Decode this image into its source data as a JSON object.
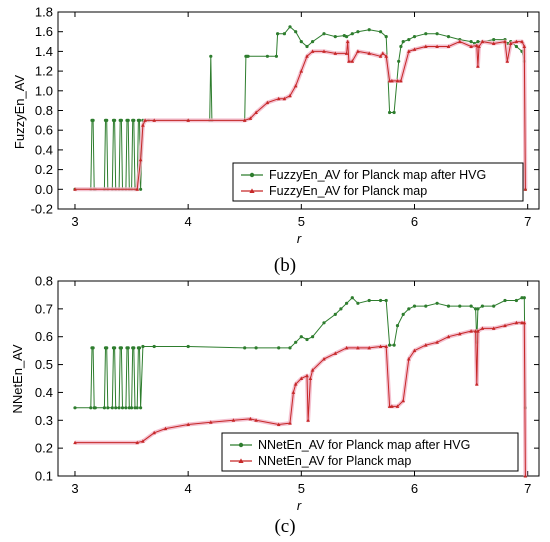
{
  "chart_data": [
    {
      "type": "line",
      "panel_label": "(b)",
      "xlabel": "r",
      "ylabel": "FuzzyEn_AV",
      "xlim": [
        2.85,
        7.1
      ],
      "ylim": [
        -0.2,
        1.8
      ],
      "xticks": [
        "3",
        "4",
        "5",
        "6",
        "7"
      ],
      "yticks": [
        "-0.2",
        "0.0",
        "0.2",
        "0.4",
        "0.6",
        "0.8",
        "1.0",
        "1.2",
        "1.4",
        "1.6",
        "1.8"
      ],
      "legend_position": "bottom-right",
      "grid": false,
      "series": [
        {
          "name": "FuzzyEn_AV for Planck map after HVG",
          "color": "#2e7d2e",
          "x": [
            3.0,
            3.14,
            3.15,
            3.16,
            3.17,
            3.18,
            3.26,
            3.27,
            3.28,
            3.29,
            3.33,
            3.34,
            3.35,
            3.36,
            3.39,
            3.4,
            3.41,
            3.42,
            3.45,
            3.46,
            3.47,
            3.48,
            3.5,
            3.51,
            3.52,
            3.53,
            3.55,
            3.56,
            3.57,
            3.58,
            3.6,
            3.65,
            4.0,
            4.19,
            4.2,
            4.21,
            4.5,
            4.51,
            4.52,
            4.53,
            4.7,
            4.78,
            4.79,
            4.85,
            4.9,
            4.95,
            5.0,
            5.05,
            5.1,
            5.2,
            5.3,
            5.38,
            5.4,
            5.45,
            5.5,
            5.6,
            5.7,
            5.75,
            5.78,
            5.82,
            5.86,
            5.88,
            5.9,
            5.95,
            6.0,
            6.1,
            6.2,
            6.3,
            6.4,
            6.5,
            6.53,
            6.56,
            6.6,
            6.7,
            6.8,
            6.82,
            6.85,
            6.9,
            6.95,
            6.97,
            6.98
          ],
          "values": [
            0.0,
            0.0,
            0.7,
            0.7,
            0.0,
            0.0,
            0.0,
            0.7,
            0.7,
            0.0,
            0.0,
            0.7,
            0.7,
            0.0,
            0.0,
            0.7,
            0.7,
            0.0,
            0.0,
            0.7,
            0.7,
            0.0,
            0.0,
            0.7,
            0.7,
            0.0,
            0.0,
            0.7,
            0.7,
            0.0,
            0.7,
            0.7,
            0.7,
            0.7,
            1.35,
            0.7,
            0.7,
            1.35,
            1.35,
            1.35,
            1.35,
            1.35,
            1.58,
            1.58,
            1.65,
            1.6,
            1.5,
            1.45,
            1.5,
            1.58,
            1.55,
            1.56,
            1.55,
            1.58,
            1.6,
            1.62,
            1.6,
            1.55,
            0.78,
            0.78,
            1.3,
            1.45,
            1.5,
            1.52,
            1.55,
            1.58,
            1.58,
            1.55,
            1.52,
            1.5,
            1.48,
            1.5,
            1.5,
            1.52,
            1.52,
            1.48,
            1.5,
            1.45,
            1.4,
            1.3,
            0.0
          ]
        },
        {
          "name": "FuzzyEn_AV for Planck map",
          "color": "#c62828",
          "x": [
            3.0,
            3.55,
            3.58,
            3.6,
            3.62,
            3.7,
            4.0,
            4.5,
            4.55,
            4.6,
            4.7,
            4.8,
            4.85,
            4.9,
            4.95,
            5.0,
            5.05,
            5.1,
            5.2,
            5.3,
            5.4,
            5.41,
            5.42,
            5.45,
            5.5,
            5.6,
            5.7,
            5.72,
            5.75,
            5.78,
            5.8,
            5.85,
            5.88,
            5.95,
            6.0,
            6.1,
            6.2,
            6.3,
            6.4,
            6.5,
            6.55,
            6.56,
            6.57,
            6.6,
            6.7,
            6.8,
            6.82,
            6.85,
            6.9,
            6.95,
            6.97,
            6.98
          ],
          "values": [
            0.0,
            0.0,
            0.3,
            0.65,
            0.7,
            0.7,
            0.7,
            0.7,
            0.72,
            0.78,
            0.88,
            0.92,
            0.92,
            0.95,
            1.05,
            1.2,
            1.35,
            1.4,
            1.4,
            1.38,
            1.38,
            1.5,
            1.3,
            1.3,
            1.4,
            1.38,
            1.35,
            1.38,
            1.35,
            1.1,
            1.1,
            1.1,
            1.1,
            1.4,
            1.42,
            1.45,
            1.45,
            1.45,
            1.5,
            1.45,
            1.46,
            1.25,
            1.45,
            1.5,
            1.48,
            1.5,
            1.3,
            1.48,
            1.5,
            1.5,
            1.45,
            0.0
          ]
        }
      ]
    },
    {
      "type": "line",
      "panel_label": "(c)",
      "xlabel": "r",
      "ylabel": "NNetEn_AV",
      "xlim": [
        2.85,
        7.1
      ],
      "ylim": [
        0.1,
        0.8
      ],
      "xticks": [
        "3",
        "4",
        "5",
        "6",
        "7"
      ],
      "yticks": [
        "0.1",
        "0.2",
        "0.3",
        "0.4",
        "0.5",
        "0.6",
        "0.7",
        "0.8"
      ],
      "legend_position": "bottom-right",
      "grid": false,
      "series": [
        {
          "name": "NNetEn_AV for Planck map after HVG",
          "color": "#2e7d2e",
          "x": [
            3.0,
            3.14,
            3.15,
            3.16,
            3.17,
            3.18,
            3.26,
            3.27,
            3.28,
            3.29,
            3.33,
            3.34,
            3.35,
            3.36,
            3.39,
            3.4,
            3.41,
            3.42,
            3.45,
            3.46,
            3.47,
            3.48,
            3.5,
            3.51,
            3.52,
            3.53,
            3.55,
            3.56,
            3.57,
            3.58,
            3.6,
            3.7,
            4.0,
            4.5,
            4.6,
            4.8,
            4.9,
            4.95,
            5.0,
            5.05,
            5.1,
            5.2,
            5.3,
            5.35,
            5.4,
            5.45,
            5.5,
            5.6,
            5.7,
            5.75,
            5.78,
            5.82,
            5.85,
            5.9,
            5.95,
            6.0,
            6.1,
            6.2,
            6.3,
            6.4,
            6.5,
            6.54,
            6.55,
            6.56,
            6.6,
            6.7,
            6.8,
            6.9,
            6.95,
            6.97,
            6.98
          ],
          "values": [
            0.345,
            0.345,
            0.56,
            0.56,
            0.345,
            0.345,
            0.345,
            0.56,
            0.56,
            0.345,
            0.345,
            0.56,
            0.56,
            0.345,
            0.345,
            0.56,
            0.56,
            0.345,
            0.345,
            0.56,
            0.56,
            0.345,
            0.345,
            0.56,
            0.56,
            0.345,
            0.345,
            0.56,
            0.56,
            0.345,
            0.565,
            0.565,
            0.565,
            0.56,
            0.56,
            0.56,
            0.56,
            0.58,
            0.6,
            0.59,
            0.6,
            0.65,
            0.68,
            0.7,
            0.72,
            0.74,
            0.72,
            0.73,
            0.73,
            0.73,
            0.57,
            0.57,
            0.64,
            0.68,
            0.7,
            0.71,
            0.71,
            0.72,
            0.71,
            0.71,
            0.71,
            0.7,
            0.58,
            0.7,
            0.71,
            0.71,
            0.73,
            0.73,
            0.74,
            0.74,
            0.345
          ]
        },
        {
          "name": "NNetEn_AV for Planck map",
          "color": "#c62828",
          "x": [
            3.0,
            3.55,
            3.6,
            3.7,
            3.8,
            4.0,
            4.2,
            4.4,
            4.55,
            4.6,
            4.8,
            4.9,
            4.93,
            4.95,
            5.0,
            5.05,
            5.06,
            5.08,
            5.1,
            5.2,
            5.3,
            5.4,
            5.5,
            5.6,
            5.7,
            5.75,
            5.78,
            5.8,
            5.85,
            5.9,
            5.95,
            6.0,
            6.1,
            6.2,
            6.3,
            6.4,
            6.5,
            6.54,
            6.55,
            6.56,
            6.6,
            6.7,
            6.8,
            6.9,
            6.95,
            6.97,
            6.98
          ],
          "values": [
            0.22,
            0.22,
            0.225,
            0.255,
            0.27,
            0.285,
            0.293,
            0.3,
            0.305,
            0.3,
            0.285,
            0.29,
            0.4,
            0.43,
            0.45,
            0.46,
            0.3,
            0.45,
            0.48,
            0.52,
            0.54,
            0.56,
            0.56,
            0.56,
            0.565,
            0.565,
            0.35,
            0.35,
            0.35,
            0.37,
            0.52,
            0.55,
            0.57,
            0.58,
            0.6,
            0.61,
            0.62,
            0.62,
            0.43,
            0.62,
            0.63,
            0.63,
            0.64,
            0.65,
            0.65,
            0.65,
            0.1
          ]
        }
      ]
    }
  ]
}
